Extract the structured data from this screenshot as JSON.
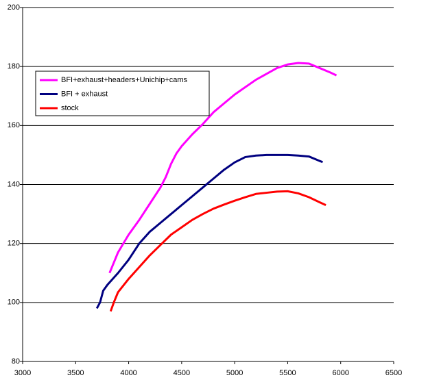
{
  "chart_data": {
    "type": "line",
    "xlim": [
      3000,
      6500
    ],
    "xticks": [
      3000,
      3500,
      4000,
      4500,
      5000,
      5500,
      6000,
      6500
    ],
    "ylim": [
      80,
      200
    ],
    "yticks": [
      80,
      100,
      120,
      140,
      160,
      180,
      200
    ],
    "grid": true,
    "legend": "upper left",
    "series": [
      {
        "name": "BFI+exhaust+headers+Unichip+cams",
        "color": "#ff00ff",
        "x": [
          3820,
          3900,
          4000,
          4100,
          4200,
          4300,
          4350,
          4400,
          4450,
          4500,
          4600,
          4700,
          4800,
          4900,
          5000,
          5100,
          5200,
          5300,
          5400,
          5500,
          5600,
          5700,
          5800,
          5900,
          5960
        ],
        "values": [
          110,
          117,
          123,
          128,
          133.5,
          139,
          142.5,
          147,
          150.5,
          153,
          157,
          160.5,
          164.5,
          167.5,
          170.5,
          173,
          175.5,
          177.5,
          179.5,
          180.7,
          181.2,
          181,
          179.5,
          178,
          177
        ]
      },
      {
        "name": "BFI + exhaust",
        "color": "#000080",
        "x": [
          3700,
          3730,
          3760,
          3800,
          3900,
          4000,
          4100,
          4200,
          4300,
          4400,
          4500,
          4600,
          4700,
          4800,
          4900,
          5000,
          5100,
          5200,
          5300,
          5400,
          5500,
          5600,
          5700,
          5800,
          5830
        ],
        "values": [
          98,
          100,
          104,
          106,
          110,
          114.5,
          120,
          124,
          127,
          130,
          133,
          136,
          139,
          142,
          145,
          147.5,
          149.3,
          149.8,
          150,
          150,
          150,
          149.8,
          149.5,
          148,
          147.6
        ]
      },
      {
        "name": "stock",
        "color": "#ff0000",
        "x": [
          3830,
          3860,
          3900,
          4000,
          4100,
          4200,
          4300,
          4400,
          4500,
          4600,
          4700,
          4800,
          4900,
          5000,
          5100,
          5200,
          5300,
          5400,
          5500,
          5600,
          5700,
          5800,
          5860
        ],
        "values": [
          97,
          100,
          103.5,
          108,
          112,
          116,
          119.5,
          123,
          125.5,
          128,
          130,
          131.8,
          133.2,
          134.5,
          135.7,
          136.8,
          137.2,
          137.6,
          137.7,
          137,
          135.7,
          134,
          133
        ]
      }
    ]
  }
}
